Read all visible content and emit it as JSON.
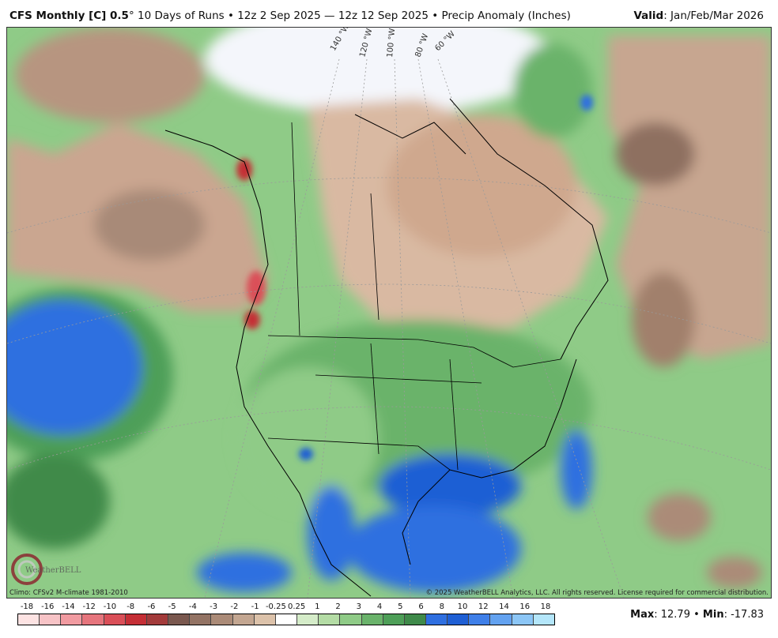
{
  "header": {
    "model": "CFS Monthly [C] 0.5",
    "degree": "°",
    "description": "10 Days of Runs • 12z 2 Sep 2025 — 12z 12 Sep 2025 • Precip Anomaly (Inches)",
    "valid_label": "Valid",
    "valid_value": ": Jan/Feb/Mar 2026"
  },
  "map": {
    "graticule_labels": [
      "140 °W",
      "120 °W",
      "100 °W",
      "80 °W",
      "60 °W"
    ],
    "watermark": "WeatherBELL"
  },
  "footer": {
    "climo": "Climo: CFSv2 M-climate 1981-2010",
    "copyright": "© 2025 WeatherBELL Analytics, LLC. All rights reserved. License required for commercial distribution."
  },
  "legend": {
    "ticks": [
      "-18",
      "-16",
      "-14",
      "-12",
      "-10",
      "-8",
      "-6",
      "-5",
      "-4",
      "-3",
      "-2",
      "-1",
      "-0.25",
      "0.25",
      "1",
      "2",
      "3",
      "4",
      "5",
      "6",
      "8",
      "10",
      "12",
      "14",
      "16",
      "18"
    ],
    "colors": [
      "#fde3e3",
      "#f7c3c6",
      "#f19ba1",
      "#e6757d",
      "#da4f58",
      "#c52f36",
      "#a33b3b",
      "#7a584f",
      "#937364",
      "#ab8b78",
      "#c3a691",
      "#dcc2aa",
      "#ffffff",
      "#d5ecc9",
      "#b4dca5",
      "#8fcb87",
      "#6ab36b",
      "#4e9f58",
      "#3f8a4a",
      "#2f6fe0",
      "#1f5fd4",
      "#3f7fe8",
      "#63a2f0",
      "#8cc6f6",
      "#b4e6fa"
    ]
  },
  "stats": {
    "max_label": "Max",
    "max_value": ": 12.79",
    "separator": " • ",
    "min_label": "Min",
    "min_value": ": -17.83"
  }
}
